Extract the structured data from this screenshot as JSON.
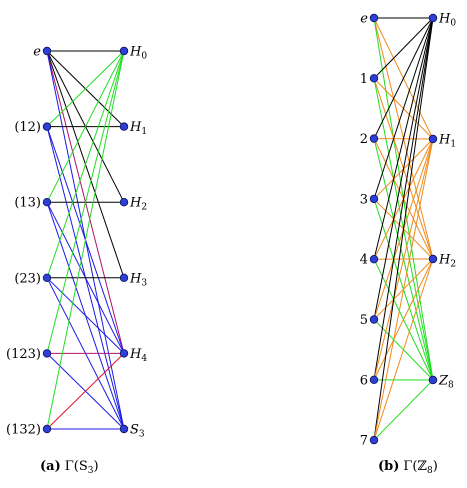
{
  "colors": {
    "node": "#2f3fd6",
    "black": "#000000",
    "green": "#22dd22",
    "blue": "#1a1ae6",
    "magenta": "#b0106a",
    "red": "#e0102a",
    "orange": "#ee8a1a"
  },
  "diagrams": [
    {
      "id": "s3",
      "caption_label": "(a)",
      "caption_text": "Γ(S",
      "caption_sub": "3",
      "caption_close": ")",
      "left_nodes": [
        {
          "label": "e",
          "italic": true
        },
        {
          "label": "(12)"
        },
        {
          "label": "(13)"
        },
        {
          "label": "(23)"
        },
        {
          "label": "(123)"
        },
        {
          "label": "(132)"
        }
      ],
      "right_nodes": [
        {
          "base": "H",
          "sub": "0"
        },
        {
          "base": "H",
          "sub": "1"
        },
        {
          "base": "H",
          "sub": "2"
        },
        {
          "base": "H",
          "sub": "3"
        },
        {
          "base": "H",
          "sub": "4"
        },
        {
          "base": "S",
          "sub": "3"
        }
      ],
      "edges": [
        [
          0,
          0,
          "black"
        ],
        [
          0,
          1,
          "black"
        ],
        [
          0,
          2,
          "black"
        ],
        [
          0,
          3,
          "black"
        ],
        [
          0,
          4,
          "magenta"
        ],
        [
          0,
          5,
          "blue"
        ],
        [
          1,
          0,
          "green"
        ],
        [
          1,
          1,
          "black"
        ],
        [
          1,
          4,
          "blue"
        ],
        [
          1,
          5,
          "blue"
        ],
        [
          2,
          0,
          "green"
        ],
        [
          2,
          2,
          "black"
        ],
        [
          2,
          4,
          "blue"
        ],
        [
          2,
          5,
          "blue"
        ],
        [
          3,
          0,
          "green"
        ],
        [
          3,
          3,
          "black"
        ],
        [
          3,
          4,
          "blue"
        ],
        [
          3,
          5,
          "blue"
        ],
        [
          4,
          0,
          "green"
        ],
        [
          4,
          4,
          "magenta"
        ],
        [
          4,
          5,
          "blue"
        ],
        [
          5,
          0,
          "green"
        ],
        [
          5,
          4,
          "red"
        ],
        [
          5,
          5,
          "blue"
        ]
      ]
    },
    {
      "id": "z8",
      "caption_label": "(b)",
      "caption_text": "Γ(ℤ",
      "caption_sub": "8",
      "caption_close": ")",
      "left_nodes": [
        {
          "label": "e",
          "italic": true
        },
        {
          "label": "1"
        },
        {
          "label": "2"
        },
        {
          "label": "3"
        },
        {
          "label": "4"
        },
        {
          "label": "5"
        },
        {
          "label": "6"
        },
        {
          "label": "7"
        }
      ],
      "right_nodes": [
        {
          "base": "H",
          "sub": "0"
        },
        {
          "base": "H",
          "sub": "1"
        },
        {
          "base": "H",
          "sub": "2"
        },
        {
          "base": "Z",
          "sub": "8"
        }
      ],
      "edges": [
        [
          0,
          0,
          "black"
        ],
        [
          0,
          1,
          "orange"
        ],
        [
          0,
          2,
          "orange"
        ],
        [
          0,
          3,
          "green"
        ],
        [
          1,
          0,
          "black"
        ],
        [
          1,
          1,
          "orange"
        ],
        [
          1,
          2,
          "orange"
        ],
        [
          1,
          3,
          "green"
        ],
        [
          2,
          0,
          "black"
        ],
        [
          2,
          1,
          "orange"
        ],
        [
          2,
          2,
          "orange"
        ],
        [
          2,
          3,
          "green"
        ],
        [
          3,
          0,
          "black"
        ],
        [
          3,
          1,
          "orange"
        ],
        [
          3,
          2,
          "orange"
        ],
        [
          3,
          3,
          "green"
        ],
        [
          4,
          0,
          "black"
        ],
        [
          4,
          1,
          "orange"
        ],
        [
          4,
          2,
          "orange"
        ],
        [
          4,
          3,
          "green"
        ],
        [
          5,
          0,
          "black"
        ],
        [
          5,
          1,
          "orange"
        ],
        [
          5,
          2,
          "orange"
        ],
        [
          5,
          3,
          "green"
        ],
        [
          6,
          0,
          "black"
        ],
        [
          6,
          1,
          "orange"
        ],
        [
          6,
          2,
          "orange"
        ],
        [
          6,
          3,
          "green"
        ],
        [
          7,
          0,
          "black"
        ],
        [
          7,
          1,
          "orange"
        ],
        [
          7,
          2,
          "orange"
        ],
        [
          7,
          3,
          "green"
        ]
      ]
    }
  ]
}
